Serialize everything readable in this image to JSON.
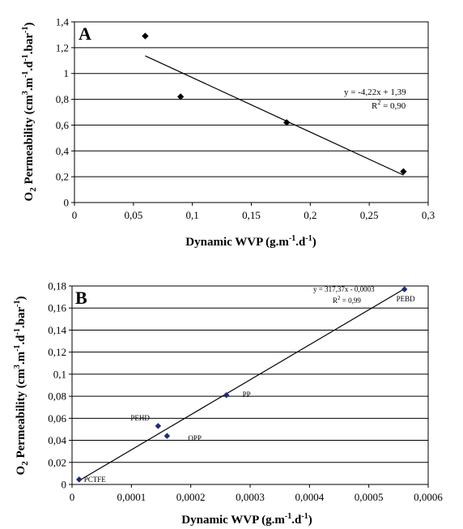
{
  "chart_data": [
    {
      "type": "scatter",
      "panel_label": "A",
      "xlabel_main": "Dynamic WVP (g.m",
      "xlabel_sup1": "-1",
      "xlabel_mid": ".d",
      "xlabel_sup2": "-1",
      "xlabel_end": ")",
      "ylabel_main": "O",
      "ylabel_sub": "2",
      "ylabel_rest": " Permeability (cm",
      "ylabel_s1": "3",
      "ylabel_m1": ".m",
      "ylabel_s2": "-1",
      "ylabel_m2": ".d",
      "ylabel_s3": "-1",
      "ylabel_m3": ".bar",
      "ylabel_s4": "-1",
      "ylabel_end": ")",
      "xlim": [
        0,
        0.3
      ],
      "ylim": [
        0,
        1.4
      ],
      "x_ticks": [
        0,
        0.05,
        0.1,
        0.15,
        0.2,
        0.25,
        0.3
      ],
      "x_tick_labels": [
        "0",
        "0,05",
        "0,1",
        "0,15",
        "0,2",
        "0,25",
        "0,3"
      ],
      "y_ticks": [
        0,
        0.2,
        0.4,
        0.6,
        0.8,
        1.0,
        1.2,
        1.4
      ],
      "y_tick_labels": [
        "0",
        "0,2",
        "0,4",
        "0,6",
        "0,8",
        "1",
        "1,2",
        "1,4"
      ],
      "grid": "horizontal",
      "points": [
        {
          "x": 0.06,
          "y": 1.29,
          "label": ""
        },
        {
          "x": 0.09,
          "y": 0.82,
          "label": ""
        },
        {
          "x": 0.18,
          "y": 0.62,
          "label": ""
        },
        {
          "x": 0.279,
          "y": 0.24,
          "label": ""
        }
      ],
      "trendline": {
        "x0": 0.06,
        "x1": 0.279,
        "slope": -4.22,
        "intercept": 1.39
      },
      "equation": "y = -4,22x + 1,39",
      "r2_prefix": "R",
      "r2_sup": "2",
      "r2_value": " = 0,90",
      "marker_color": "#000000"
    },
    {
      "type": "scatter",
      "panel_label": "B",
      "xlabel_main": "Dynamic WVP (g.m",
      "xlabel_sup1": "-1",
      "xlabel_mid": ".d",
      "xlabel_sup2": "-1",
      "xlabel_end": ")",
      "ylabel_main": "O",
      "ylabel_sub": "2",
      "ylabel_rest": " Permeability (cm",
      "ylabel_s1": "3",
      "ylabel_m1": ".m",
      "ylabel_s2": "-1",
      "ylabel_m2": ".d",
      "ylabel_s3": "-1",
      "ylabel_m3": ".bar",
      "ylabel_s4": "-1",
      "ylabel_end": ")",
      "xlim": [
        0,
        0.0006
      ],
      "ylim": [
        0,
        0.18
      ],
      "x_ticks": [
        0,
        0.0001,
        0.0002,
        0.0003,
        0.0004,
        0.0005,
        0.0006
      ],
      "x_tick_labels": [
        "0",
        "0,0001",
        "0,0002",
        "0,0003",
        "0,0004",
        "0,0005",
        "0,0006"
      ],
      "y_ticks": [
        0,
        0.02,
        0.04,
        0.06,
        0.08,
        0.1,
        0.12,
        0.14,
        0.16,
        0.18
      ],
      "y_tick_labels": [
        "0",
        "0,02",
        "0,04",
        "0,06",
        "0,08",
        "0,1",
        "0,12",
        "0,14",
        "0,16",
        "0,18"
      ],
      "grid": "horizontal",
      "points": [
        {
          "x": 1.2e-05,
          "y": 0.0045,
          "label": "PCTFE"
        },
        {
          "x": 0.000145,
          "y": 0.053,
          "label": "PEHD"
        },
        {
          "x": 0.00016,
          "y": 0.044,
          "label": "OPP"
        },
        {
          "x": 0.00026,
          "y": 0.081,
          "label": "PP"
        },
        {
          "x": 0.00056,
          "y": 0.177,
          "label": "PEBD"
        }
      ],
      "trendline": {
        "x0": 1.2e-05,
        "x1": 0.00056,
        "slope": 317.37,
        "intercept": -0.0003
      },
      "equation": "y = 317,37x - 0,0003",
      "r2_prefix": "R",
      "r2_sup": "2",
      "r2_value": " = 0,99",
      "marker_color": "#1f2a7a"
    }
  ]
}
